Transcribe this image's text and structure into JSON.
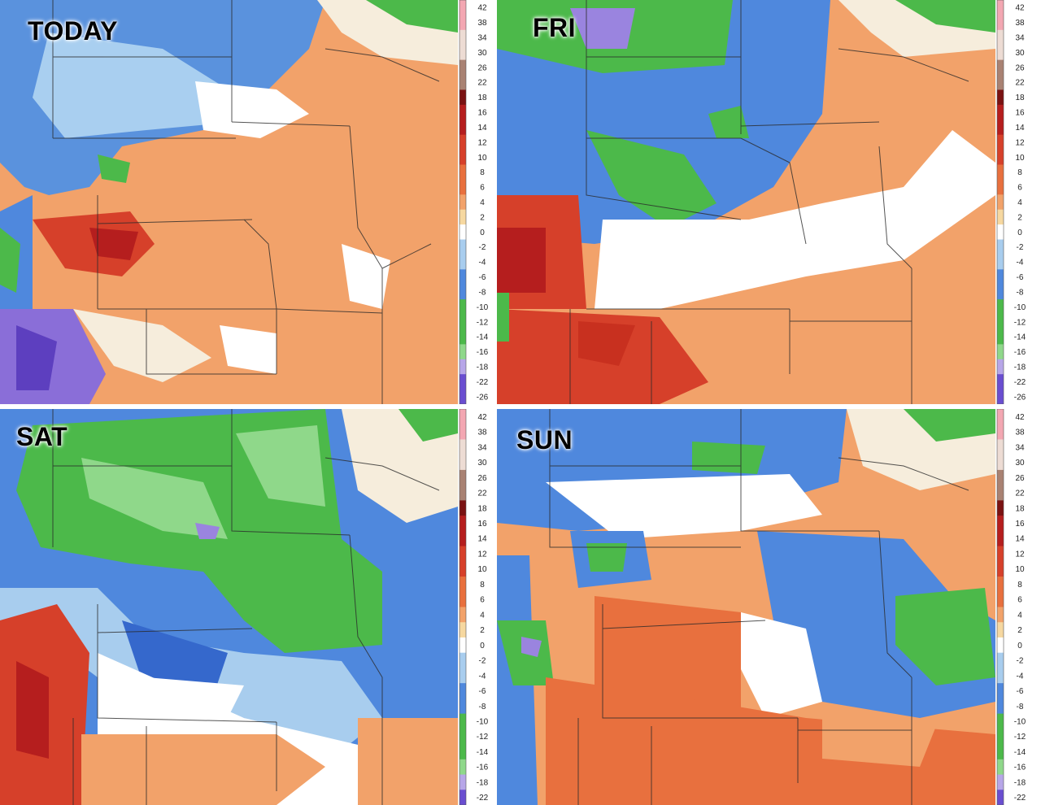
{
  "panels": [
    {
      "id": "today",
      "title": "TODAY"
    },
    {
      "id": "fri",
      "title": "FRI"
    },
    {
      "id": "sat",
      "title": "SAT"
    },
    {
      "id": "sun",
      "title": "SUN"
    }
  ],
  "legends": {
    "top_left": [
      "42",
      "38",
      "34",
      "30",
      "26",
      "22",
      "18",
      "16",
      "14",
      "12",
      "10",
      "8",
      "6",
      "4",
      "2",
      "0",
      "-2",
      "-4",
      "-6",
      "-8",
      "-10",
      "-12",
      "-14",
      "-16",
      "-18",
      "-22",
      "-26"
    ],
    "top_right": [
      "42",
      "38",
      "34",
      "30",
      "26",
      "22",
      "18",
      "16",
      "14",
      "12",
      "10",
      "8",
      "6",
      "4",
      "2",
      "0",
      "-2",
      "-4",
      "-6",
      "-8",
      "-10",
      "-12",
      "-14",
      "-16",
      "-18",
      "-22",
      "-26"
    ],
    "bottom_left": [
      "42",
      "38",
      "34",
      "30",
      "26",
      "22",
      "18",
      "16",
      "14",
      "12",
      "10",
      "8",
      "6",
      "4",
      "2",
      "0",
      "-2",
      "-4",
      "-6",
      "-8",
      "-10",
      "-12",
      "-14",
      "-16",
      "-18",
      "-22"
    ],
    "bottom_right": [
      "42",
      "38",
      "34",
      "30",
      "26",
      "22",
      "18",
      "16",
      "14",
      "12",
      "10",
      "8",
      "6",
      "4",
      "2",
      "0",
      "-2",
      "-4",
      "-6",
      "-8",
      "-10",
      "-12",
      "-14",
      "-16",
      "-18",
      "-22"
    ]
  },
  "colors": {
    "warm_orange": "#f2a26a",
    "dark_orange": "#e8703e",
    "red": "#d6402a",
    "dark_red": "#b51e1e",
    "pale": "#f6eddc",
    "white": "#ffffff",
    "light_blue": "#a8cdee",
    "blue": "#4f88dd",
    "dark_blue": "#2f5fc8",
    "green": "#4cb94a",
    "light_green": "#8fd88a",
    "purple": "#8a6ed8"
  }
}
